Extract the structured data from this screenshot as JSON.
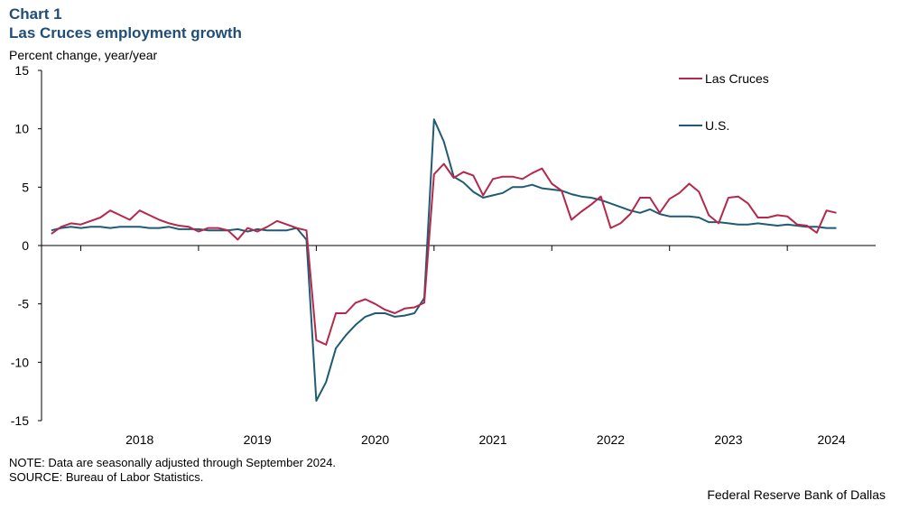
{
  "chart_label": "Chart 1",
  "title": "Las Cruces employment growth",
  "y_unit_label": "Percent change, year/year",
  "note": "NOTE: Data are seasonally adjusted through September 2024.",
  "source": "SOURCE: Bureau of Labor Statistics.",
  "credit": "Federal Reserve Bank of Dallas",
  "colors": {
    "las_cruces": "#b5284b",
    "us": "#1f5c73",
    "title": "#1f4e79"
  },
  "chart_data": {
    "type": "line",
    "title": "Las Cruces employment growth",
    "xlabel": "",
    "ylabel": "Percent change, year/year",
    "ylim": [
      -15,
      15
    ],
    "yticks": [
      15,
      10,
      5,
      0,
      -5,
      -10,
      -15
    ],
    "ytick_labels": [
      "15",
      "10",
      "5",
      "0",
      "-5",
      "-10",
      "-15"
    ],
    "x_start": "2017-09",
    "x_end": "2024-10",
    "year_labels": [
      "2018",
      "2019",
      "2020",
      "2021",
      "2022",
      "2023",
      "2024"
    ],
    "legend_position": "top-right",
    "series": [
      {
        "name": "Las Cruces",
        "color": "#b5284b",
        "values": [
          1.0,
          1.6,
          1.9,
          1.8,
          2.1,
          2.4,
          3.0,
          2.6,
          2.2,
          3.0,
          2.6,
          2.2,
          1.9,
          1.7,
          1.6,
          1.2,
          1.5,
          1.5,
          1.3,
          0.5,
          1.5,
          1.2,
          1.6,
          2.1,
          1.8,
          1.5,
          1.3,
          -8.1,
          -8.5,
          -5.8,
          -5.8,
          -4.9,
          -4.6,
          -5.0,
          -5.5,
          -5.8,
          -5.4,
          -5.3,
          -4.9,
          6.1,
          7.0,
          5.8,
          6.3,
          6.0,
          4.3,
          5.7,
          5.9,
          5.9,
          5.7,
          6.2,
          6.6,
          5.3,
          4.7,
          2.2,
          2.9,
          3.5,
          4.2,
          1.5,
          1.9,
          2.7,
          4.1,
          4.1,
          2.8,
          4.0,
          4.5,
          5.3,
          4.6,
          2.6,
          1.9,
          4.1,
          4.2,
          3.6,
          2.4,
          2.4,
          2.6,
          2.5,
          1.8,
          1.7,
          1.1,
          3.0,
          2.8
        ]
      },
      {
        "name": "U.S.",
        "color": "#1f5c73",
        "values": [
          1.3,
          1.5,
          1.6,
          1.5,
          1.6,
          1.6,
          1.5,
          1.6,
          1.6,
          1.6,
          1.5,
          1.5,
          1.6,
          1.4,
          1.4,
          1.4,
          1.3,
          1.3,
          1.3,
          1.4,
          1.2,
          1.4,
          1.3,
          1.3,
          1.3,
          1.5,
          0.5,
          -13.3,
          -11.7,
          -8.8,
          -7.7,
          -6.8,
          -6.1,
          -5.8,
          -5.8,
          -6.1,
          -6.0,
          -5.8,
          -4.5,
          10.8,
          8.9,
          5.9,
          5.4,
          4.6,
          4.1,
          4.3,
          4.5,
          5.0,
          5.0,
          5.2,
          4.9,
          4.8,
          4.7,
          4.4,
          4.2,
          4.1,
          3.9,
          3.6,
          3.3,
          3.0,
          2.8,
          3.1,
          2.7,
          2.5,
          2.5,
          2.5,
          2.4,
          2.0,
          2.0,
          1.9,
          1.8,
          1.8,
          1.9,
          1.8,
          1.7,
          1.8,
          1.7,
          1.6,
          1.6,
          1.5,
          1.5
        ]
      }
    ]
  }
}
